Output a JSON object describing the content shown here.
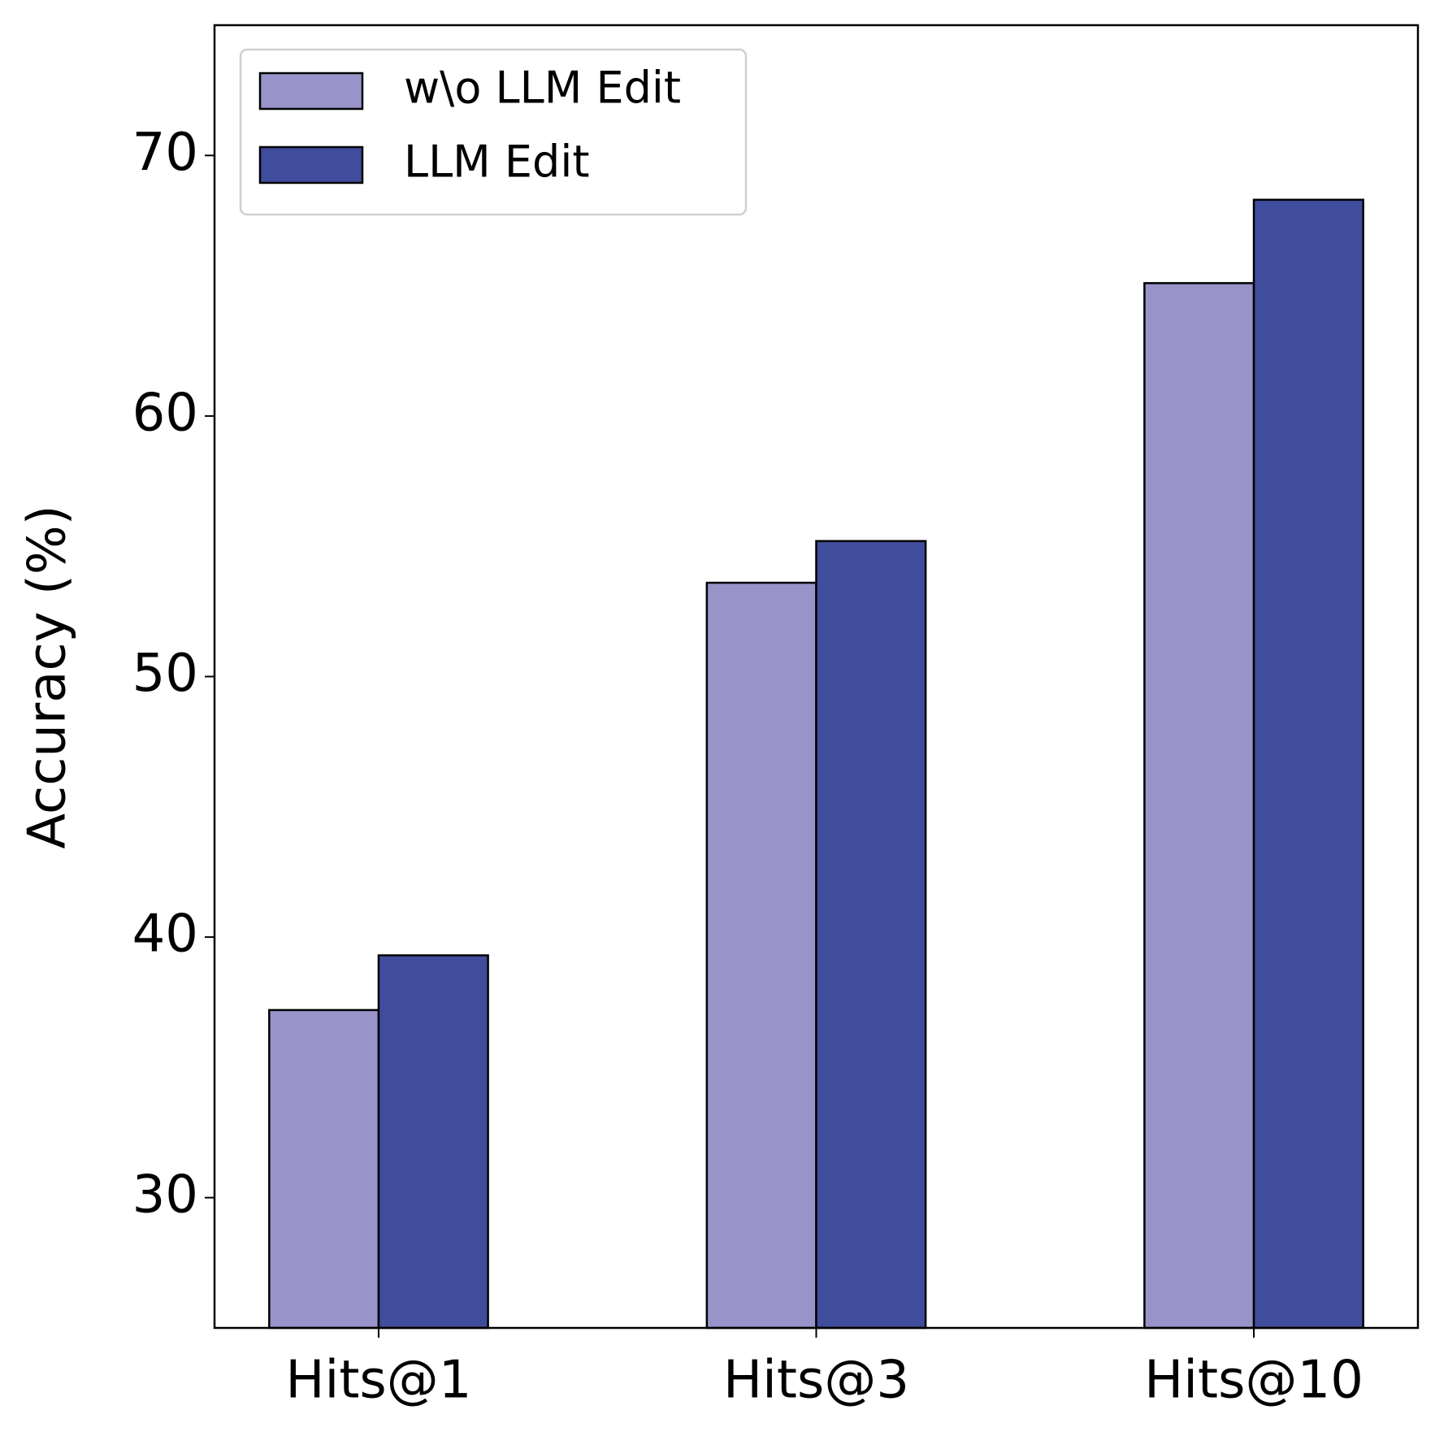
{
  "chart_data": {
    "type": "bar",
    "ylabel": "Accuracy (%)",
    "categories": [
      "Hits@1",
      "Hits@3",
      "Hits@10"
    ],
    "series": [
      {
        "name": "w\\o LLM Edit",
        "color": "#9894c9",
        "values": [
          37.2,
          53.6,
          65.1
        ]
      },
      {
        "name": "LLM Edit",
        "color": "#404c9c",
        "values": [
          39.3,
          55.2,
          68.3
        ]
      }
    ],
    "ylim": [
      25,
      75
    ],
    "yticks": [
      30,
      40,
      50,
      60,
      70
    ],
    "grid": false,
    "legend": "upper left"
  }
}
